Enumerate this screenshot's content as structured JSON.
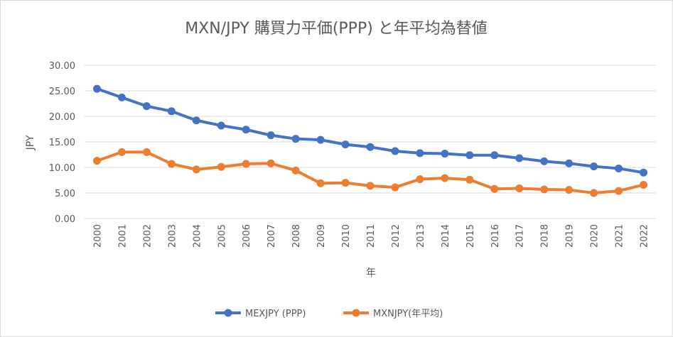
{
  "colors": {
    "ppp": "#4472C4",
    "avg": "#ED7D31",
    "grid": "#d9d9d9",
    "text": "#595959"
  },
  "chart_data": {
    "type": "line",
    "title": "MXN/JPY 購買力平価(PPP) と年平均為替値",
    "xlabel": "年",
    "ylabel": "JPY",
    "ylim": [
      0,
      30
    ],
    "yticks": [
      "0.00",
      "5.00",
      "10.00",
      "15.00",
      "20.00",
      "25.00",
      "30.00"
    ],
    "categories": [
      "2000",
      "2001",
      "2002",
      "2003",
      "2004",
      "2005",
      "2006",
      "2007",
      "2008",
      "2009",
      "2010",
      "2011",
      "2012",
      "2013",
      "2014",
      "2015",
      "2016",
      "2017",
      "2018",
      "2019",
      "2020",
      "2021",
      "2022"
    ],
    "grid": true,
    "legend_position": "bottom",
    "series": [
      {
        "name": "MEXJPY (PPP)",
        "values": [
          25.4,
          23.7,
          22.0,
          21.0,
          19.2,
          18.2,
          17.4,
          16.3,
          15.6,
          15.4,
          14.5,
          14.0,
          13.2,
          12.8,
          12.7,
          12.4,
          12.4,
          11.8,
          11.2,
          10.8,
          10.2,
          9.8,
          9.0
        ]
      },
      {
        "name": "MXNJPY(年平均)",
        "values": [
          11.3,
          13.0,
          13.0,
          10.7,
          9.6,
          10.1,
          10.7,
          10.8,
          9.4,
          6.9,
          7.0,
          6.4,
          6.1,
          7.7,
          7.9,
          7.6,
          5.8,
          5.9,
          5.7,
          5.6,
          5.0,
          5.4,
          6.6
        ]
      }
    ]
  }
}
